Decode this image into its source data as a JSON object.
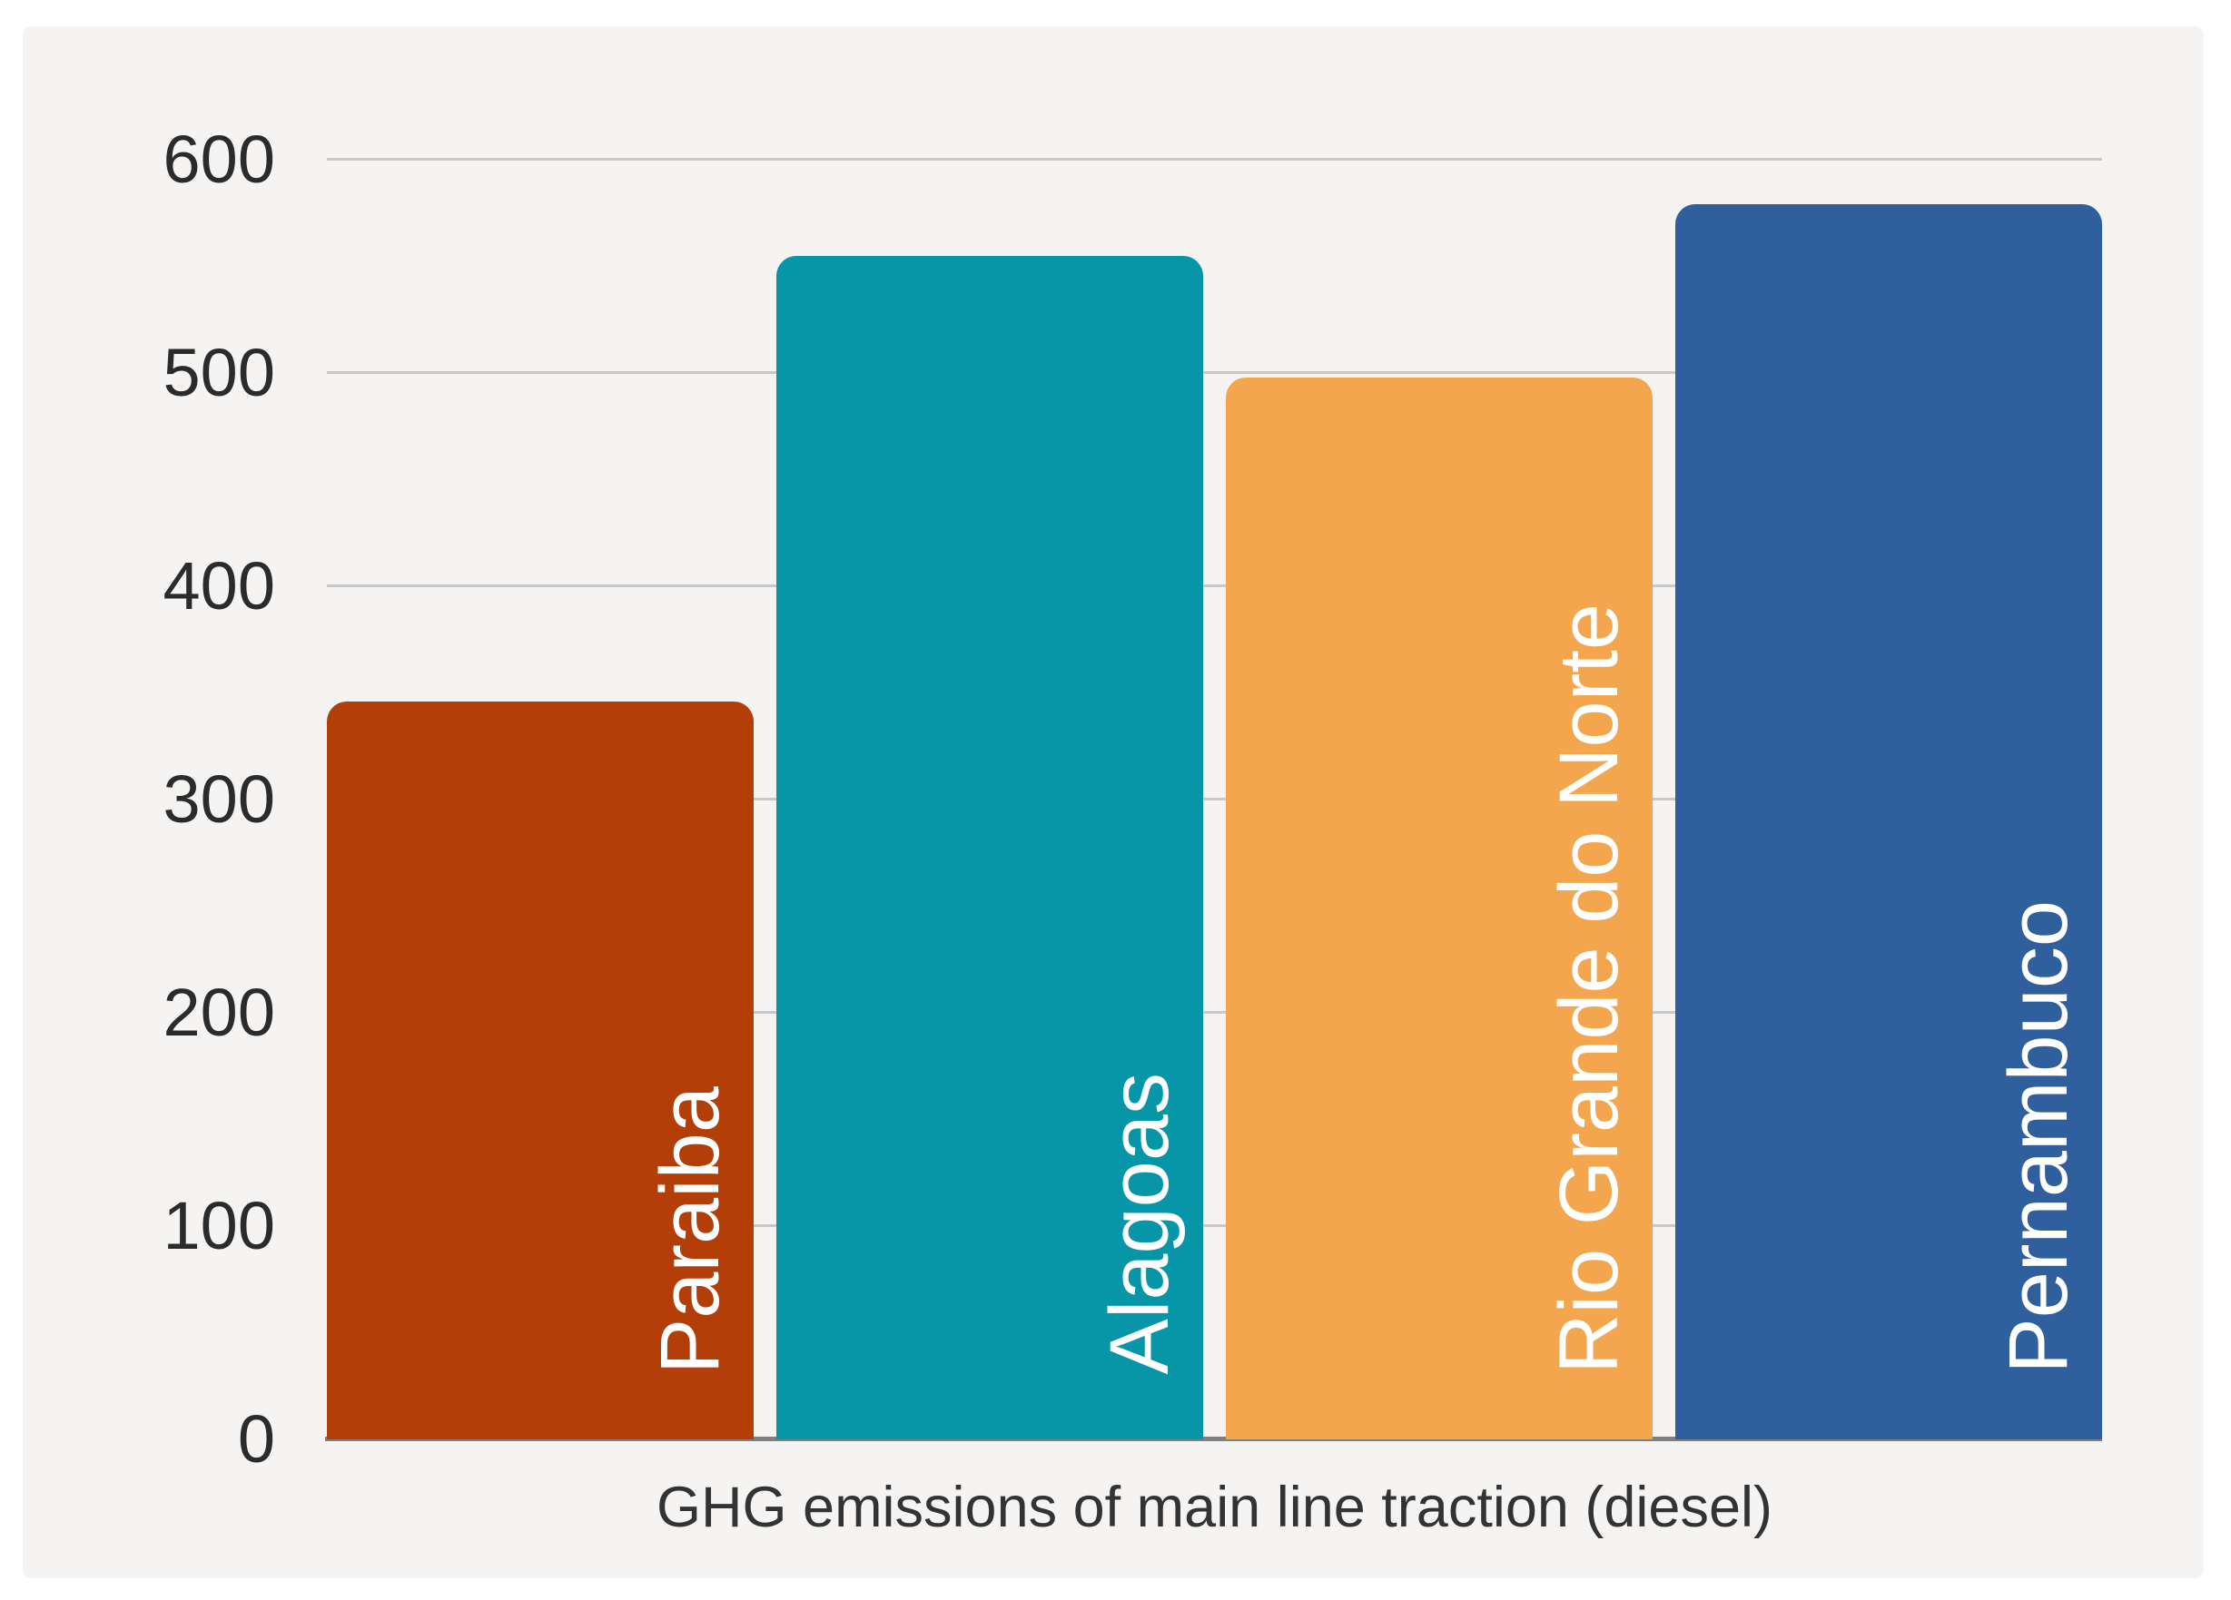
{
  "panel": {
    "background": "#f5f4f2"
  },
  "chart_data": {
    "type": "bar",
    "categories": [
      "Paraiba",
      "Alagoas",
      "Rio Grande do Norte",
      "Pernambuco"
    ],
    "values": [
      346,
      555,
      498,
      579
    ],
    "bar_colors": [
      "#b33e08",
      "#0696a8",
      "#f3a64d",
      "#2f5f9d"
    ],
    "title": "",
    "xlabel": "GHG emissions of main line traction (diesel)",
    "ylabel": "",
    "ylim": [
      0,
      600
    ],
    "yticks": [
      0,
      100,
      200,
      300,
      400,
      500,
      600
    ],
    "grid": true,
    "legend": false,
    "bar_label_position": "inside-bottom-right-rotated",
    "bar_label_color": "#ffffff",
    "tick_label_color": "#2b2b2b",
    "grid_color": "#c9c9c9",
    "axis_line_color": "#7f7f7f",
    "panel_background": "#f5f4f2",
    "page_background": "#ffffff"
  }
}
